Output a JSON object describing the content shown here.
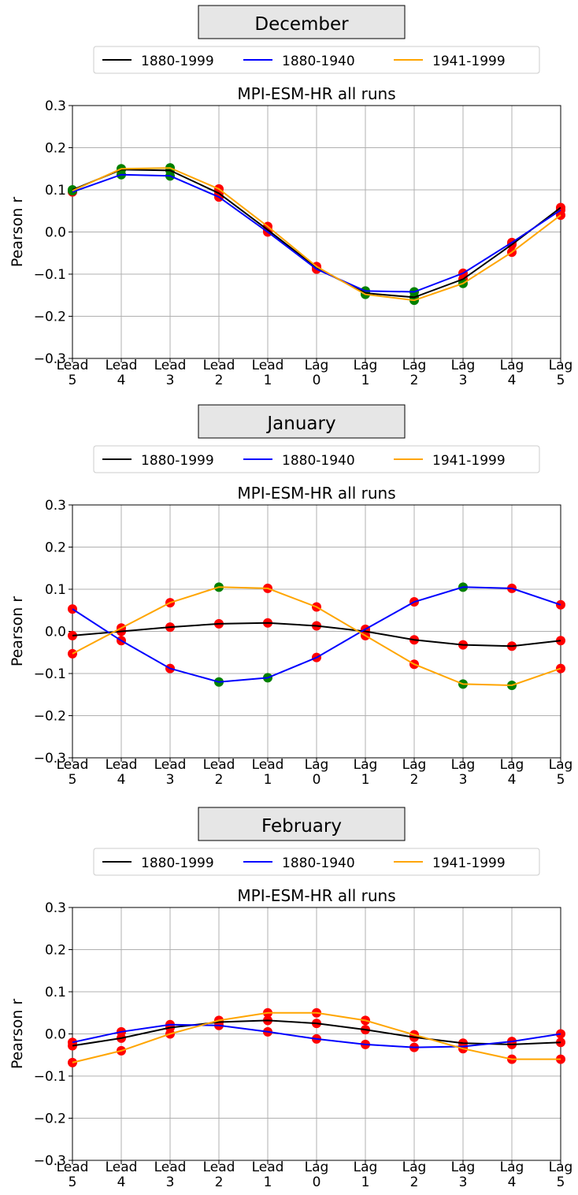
{
  "legend": {
    "entries": [
      {
        "label": "1880-1999",
        "color": "#000000"
      },
      {
        "label": "1880-1940",
        "color": "#0000ff"
      },
      {
        "label": "1941-1999",
        "color": "#ffa500"
      }
    ]
  },
  "marker_colors": {
    "significant": "#008000",
    "not_significant": "#ff0000"
  },
  "chart_data": [
    {
      "type": "line",
      "month": "December",
      "title": "MPI-ESM-HR all runs",
      "ylabel": "Pearson r",
      "ylim": [
        -0.3,
        0.3
      ],
      "yticks": [
        "−0.3",
        "−0.2",
        "−0.1",
        "0.0",
        "0.1",
        "0.2",
        "0.3"
      ],
      "categories": [
        [
          "Lead",
          "5"
        ],
        [
          "Lead",
          "4"
        ],
        [
          "Lead",
          "3"
        ],
        [
          "Lead",
          "2"
        ],
        [
          "Lead",
          "1"
        ],
        [
          "Lag",
          "0"
        ],
        [
          "Lag",
          "1"
        ],
        [
          "Lag",
          "2"
        ],
        [
          "Lag",
          "3"
        ],
        [
          "Lag",
          "4"
        ],
        [
          "Lag",
          "5"
        ]
      ],
      "grid": true,
      "legend_position": "top-center",
      "series": [
        {
          "name": "1880-1999",
          "color": "#000000",
          "values": [
            0.1,
            0.148,
            0.146,
            0.092,
            0.005,
            -0.085,
            -0.145,
            -0.155,
            -0.112,
            -0.03,
            0.058
          ],
          "significant": [
            true,
            true,
            true,
            false,
            false,
            false,
            true,
            true,
            false,
            false,
            false
          ]
        },
        {
          "name": "1880-1940",
          "color": "#0000ff",
          "values": [
            0.095,
            0.136,
            0.133,
            0.083,
            0.0,
            -0.088,
            -0.14,
            -0.142,
            -0.098,
            -0.025,
            0.052
          ],
          "significant": [
            false,
            true,
            true,
            false,
            false,
            false,
            true,
            true,
            false,
            false,
            false
          ]
        },
        {
          "name": "1941-1999",
          "color": "#ffa500",
          "values": [
            0.098,
            0.15,
            0.152,
            0.102,
            0.013,
            -0.082,
            -0.148,
            -0.162,
            -0.122,
            -0.048,
            0.04
          ],
          "significant": [
            true,
            true,
            true,
            false,
            false,
            false,
            true,
            true,
            true,
            false,
            false
          ]
        }
      ]
    },
    {
      "type": "line",
      "month": "January",
      "title": "MPI-ESM-HR all runs",
      "ylabel": "Pearson r",
      "ylim": [
        -0.3,
        0.3
      ],
      "yticks": [
        "−0.3",
        "−0.2",
        "−0.1",
        "0.0",
        "0.1",
        "0.2",
        "0.3"
      ],
      "categories": [
        [
          "Lead",
          "5"
        ],
        [
          "Lead",
          "4"
        ],
        [
          "Lead",
          "3"
        ],
        [
          "Lead",
          "2"
        ],
        [
          "Lead",
          "1"
        ],
        [
          "Lag",
          "0"
        ],
        [
          "Lag",
          "1"
        ],
        [
          "Lag",
          "2"
        ],
        [
          "Lag",
          "3"
        ],
        [
          "Lag",
          "4"
        ],
        [
          "Lag",
          "5"
        ]
      ],
      "grid": true,
      "legend_position": "top-center",
      "series": [
        {
          "name": "1880-1999",
          "color": "#000000",
          "values": [
            -0.01,
            0.0,
            0.01,
            0.018,
            0.02,
            0.013,
            0.0,
            -0.02,
            -0.032,
            -0.035,
            -0.022
          ],
          "significant": [
            false,
            false,
            false,
            false,
            false,
            false,
            false,
            false,
            false,
            false,
            false
          ]
        },
        {
          "name": "1880-1940",
          "color": "#0000ff",
          "values": [
            0.053,
            -0.022,
            -0.088,
            -0.12,
            -0.11,
            -0.062,
            0.005,
            0.07,
            0.105,
            0.102,
            0.063
          ],
          "significant": [
            false,
            false,
            false,
            true,
            true,
            false,
            false,
            false,
            true,
            false,
            false
          ]
        },
        {
          "name": "1941-1999",
          "color": "#ffa500",
          "values": [
            -0.053,
            0.008,
            0.068,
            0.105,
            0.102,
            0.058,
            -0.01,
            -0.078,
            -0.125,
            -0.128,
            -0.088
          ],
          "significant": [
            false,
            false,
            false,
            true,
            false,
            false,
            false,
            false,
            true,
            true,
            false
          ]
        }
      ]
    },
    {
      "type": "line",
      "month": "February",
      "title": "MPI-ESM-HR all runs",
      "ylabel": "Pearson r",
      "ylim": [
        -0.3,
        0.3
      ],
      "yticks": [
        "−0.3",
        "−0.2",
        "−0.1",
        "0.0",
        "0.1",
        "0.2",
        "0.3"
      ],
      "categories": [
        [
          "Lead",
          "5"
        ],
        [
          "Lead",
          "4"
        ],
        [
          "Lead",
          "3"
        ],
        [
          "Lead",
          "2"
        ],
        [
          "Lead",
          "1"
        ],
        [
          "Lag",
          "0"
        ],
        [
          "Lag",
          "1"
        ],
        [
          "Lag",
          "2"
        ],
        [
          "Lag",
          "3"
        ],
        [
          "Lag",
          "4"
        ],
        [
          "Lag",
          "5"
        ]
      ],
      "grid": true,
      "legend_position": "top-center",
      "series": [
        {
          "name": "1880-1999",
          "color": "#000000",
          "values": [
            -0.028,
            -0.01,
            0.015,
            0.028,
            0.032,
            0.025,
            0.01,
            -0.008,
            -0.022,
            -0.025,
            -0.02
          ],
          "significant": [
            false,
            false,
            false,
            false,
            false,
            false,
            false,
            false,
            false,
            false,
            false
          ]
        },
        {
          "name": "1880-1940",
          "color": "#0000ff",
          "values": [
            -0.02,
            0.005,
            0.022,
            0.02,
            0.005,
            -0.012,
            -0.025,
            -0.032,
            -0.03,
            -0.018,
            0.0
          ],
          "significant": [
            false,
            false,
            false,
            false,
            false,
            false,
            false,
            false,
            false,
            false,
            false
          ]
        },
        {
          "name": "1941-1999",
          "color": "#ffa500",
          "values": [
            -0.068,
            -0.04,
            0.0,
            0.032,
            0.05,
            0.05,
            0.032,
            -0.002,
            -0.035,
            -0.06,
            -0.06
          ],
          "significant": [
            false,
            false,
            false,
            false,
            false,
            false,
            false,
            false,
            false,
            false,
            false
          ]
        }
      ]
    }
  ]
}
